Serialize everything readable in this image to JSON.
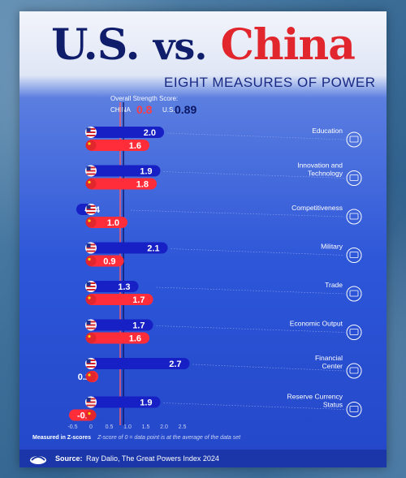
{
  "title": {
    "us": "U.S.",
    "vs": "vs.",
    "china": "China"
  },
  "subtitle": "EIGHT MEASURES OF POWER",
  "overall": {
    "label": "Overall Strength Score:",
    "china_label": "CHINA",
    "china_value": "0.8",
    "us_label": "U.S.",
    "us_value": "0.89"
  },
  "footer": {
    "measured": "Measured in Z-scores",
    "zscore_note": "Z-score of 0 = data point is at the average of the data set"
  },
  "source": {
    "label": "Source:",
    "text": "Ray Dalio, The Great Powers Index 2024"
  },
  "colors": {
    "us": "#1620c4",
    "china": "#ff2d3a",
    "us_text": "#ffffff",
    "china_text": "#ffffff"
  },
  "chart_data": {
    "type": "bar",
    "orientation": "horizontal",
    "categories": [
      "Education",
      "Innovation and Technology",
      "Competitiveness",
      "Military",
      "Trade",
      "Economic Output",
      "Financial Center",
      "Reserve Currency Status"
    ],
    "category_lines": [
      [
        "Education"
      ],
      [
        "Innovation and",
        "Technology"
      ],
      [
        "Competitiveness"
      ],
      [
        "Military"
      ],
      [
        "Trade"
      ],
      [
        "Economic Output"
      ],
      [
        "Financial",
        "Center"
      ],
      [
        "Reserve Currency",
        "Status"
      ]
    ],
    "series": [
      {
        "name": "U.S.",
        "values": [
          2.0,
          1.9,
          -0.4,
          2.1,
          1.3,
          1.7,
          2.7,
          1.9
        ],
        "labels": [
          "2.0",
          "1.9",
          "-0.4",
          "2.1",
          "1.3",
          "1.7",
          "2.7",
          "1.9"
        ]
      },
      {
        "name": "China",
        "values": [
          1.6,
          1.8,
          1.0,
          0.9,
          1.7,
          1.6,
          0.2,
          -0.6
        ],
        "labels": [
          "1.6",
          "1.8",
          "1.0",
          "0.9",
          "1.7",
          "1.6",
          "0.2",
          "-0.6"
        ]
      }
    ],
    "xticks": [
      "-0.5",
      "0",
      "0.5",
      "1.0",
      "1.5",
      "2.0",
      "2.5"
    ],
    "xtick_values": [
      -0.5,
      0,
      0.5,
      1.0,
      1.5,
      2.0,
      2.5
    ],
    "xlim": [
      -0.8,
      2.8
    ],
    "reference_lines": [
      0.8,
      0.89
    ]
  }
}
